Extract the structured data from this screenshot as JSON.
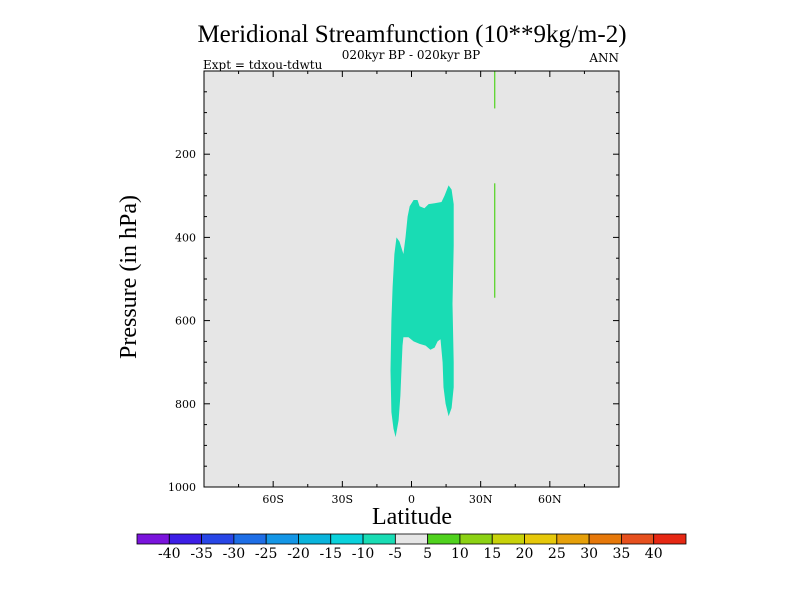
{
  "chart_data": {
    "type": "contour",
    "title": "Meridional Streamfunction (10**9kg/m-2)",
    "subtitle": "020kyr BP - 020kyr BP",
    "left_label": "Expt = tdxou-tdwtu",
    "right_label": "ANN",
    "xlabel": "Latitude",
    "ylabel": "Pressure (in hPa)",
    "xlim": [
      -90,
      90
    ],
    "ylim": [
      1000,
      0
    ],
    "x_ticks": [
      -60,
      -30,
      0,
      30,
      60
    ],
    "x_tick_labels": [
      "60S",
      "30S",
      "0",
      "30N",
      "60N"
    ],
    "y_ticks": [
      200,
      400,
      600,
      800,
      1000
    ],
    "y_tick_labels": [
      "200",
      "400",
      "600",
      "800",
      "1000"
    ],
    "regions": [
      {
        "name": "negative-cell",
        "level": "-10 to -5",
        "color": "#19dcb4",
        "polygon": [
          [
            -6.9,
            880
          ],
          [
            -5.6,
            840
          ],
          [
            -4.8,
            780
          ],
          [
            -4.3,
            710
          ],
          [
            -3.9,
            660
          ],
          [
            -3.5,
            640
          ],
          [
            -1.3,
            640
          ],
          [
            0.9,
            650
          ],
          [
            3.5,
            656
          ],
          [
            6.1,
            660
          ],
          [
            8.2,
            670
          ],
          [
            10.0,
            665
          ],
          [
            11.3,
            650
          ],
          [
            12.6,
            645
          ],
          [
            13.5,
            700
          ],
          [
            13.9,
            760
          ],
          [
            14.8,
            800
          ],
          [
            16.1,
            830
          ],
          [
            17.4,
            810
          ],
          [
            18.3,
            760
          ],
          [
            18.3,
            700
          ],
          [
            17.8,
            560
          ],
          [
            18.3,
            420
          ],
          [
            18.3,
            320
          ],
          [
            17.4,
            285
          ],
          [
            16.1,
            275
          ],
          [
            14.3,
            300
          ],
          [
            13.0,
            315
          ],
          [
            10.0,
            318
          ],
          [
            7.4,
            320
          ],
          [
            5.6,
            330
          ],
          [
            3.5,
            325
          ],
          [
            2.6,
            310
          ],
          [
            0.9,
            310
          ],
          [
            -0.8,
            325
          ],
          [
            -1.7,
            350
          ],
          [
            -2.6,
            400
          ],
          [
            -3.5,
            440
          ],
          [
            -5.2,
            410
          ],
          [
            -6.5,
            400
          ],
          [
            -7.4,
            440
          ],
          [
            -8.2,
            520
          ],
          [
            -8.7,
            600
          ],
          [
            -9.1,
            720
          ],
          [
            -8.7,
            820
          ],
          [
            -7.8,
            860
          ]
        ]
      }
    ],
    "lines": [
      {
        "name": "positive-contour-line",
        "level": "5 to 10",
        "color": "#50d21e",
        "lat": 36.1,
        "segments": [
          [
            0,
            90
          ],
          [
            270,
            545
          ]
        ]
      }
    ],
    "colorbar": {
      "labels": [
        "-40",
        "-35",
        "-30",
        "-25",
        "-20",
        "-15",
        "-10",
        "-5",
        "5",
        "10",
        "15",
        "20",
        "25",
        "30",
        "35",
        "40"
      ],
      "colors": [
        "#7a14dc",
        "#3c1ee6",
        "#2846e6",
        "#1e6ee6",
        "#1496e6",
        "#0ab4dc",
        "#0ad2dc",
        "#19dcb4",
        "#e6e6e6",
        "#50d21e",
        "#8cd214",
        "#c8d20a",
        "#e6c80a",
        "#e6a00a",
        "#e6780a",
        "#e6501e",
        "#e62814"
      ]
    },
    "background_color": "#e6e6e6"
  }
}
